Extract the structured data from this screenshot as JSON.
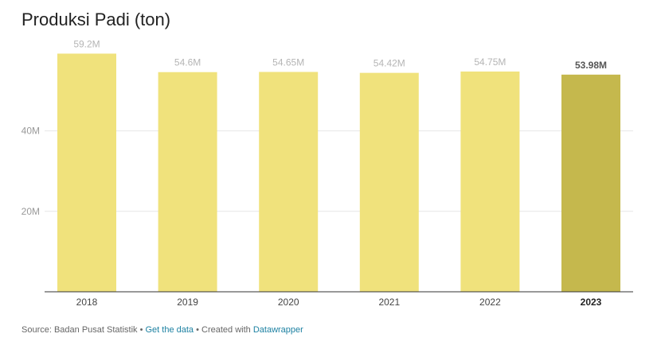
{
  "chart_data": {
    "type": "bar",
    "title": "Produksi Padi (ton)",
    "categories": [
      "2018",
      "2019",
      "2020",
      "2021",
      "2022",
      "2023"
    ],
    "values": [
      59.2,
      54.6,
      54.65,
      54.42,
      54.75,
      53.98
    ],
    "value_labels": [
      "59.2M",
      "54.6M",
      "54.65M",
      "54.42M",
      "54.75M",
      "53.98M"
    ],
    "y_ticks": [
      20,
      40
    ],
    "y_tick_labels": [
      "20M",
      "40M"
    ],
    "ylim": [
      0,
      60
    ],
    "xlabel": "",
    "ylabel": "",
    "grid": true,
    "highlight_index": 5,
    "colors": {
      "bar": "#f0e27c",
      "bar_highlight": "#c5b84d",
      "label": "#b5b5b5",
      "label_highlight": "#555555",
      "grid": "#e6e6e6",
      "axis": "#333333",
      "tick_text": "#999999",
      "category_text": "#444444"
    }
  },
  "footer": {
    "source_text": "Source: Badan Pusat Statistik",
    "separator": " • ",
    "get_data_link": "Get the data",
    "created_text": "Created with",
    "datawrapper_link": "Datawrapper"
  }
}
